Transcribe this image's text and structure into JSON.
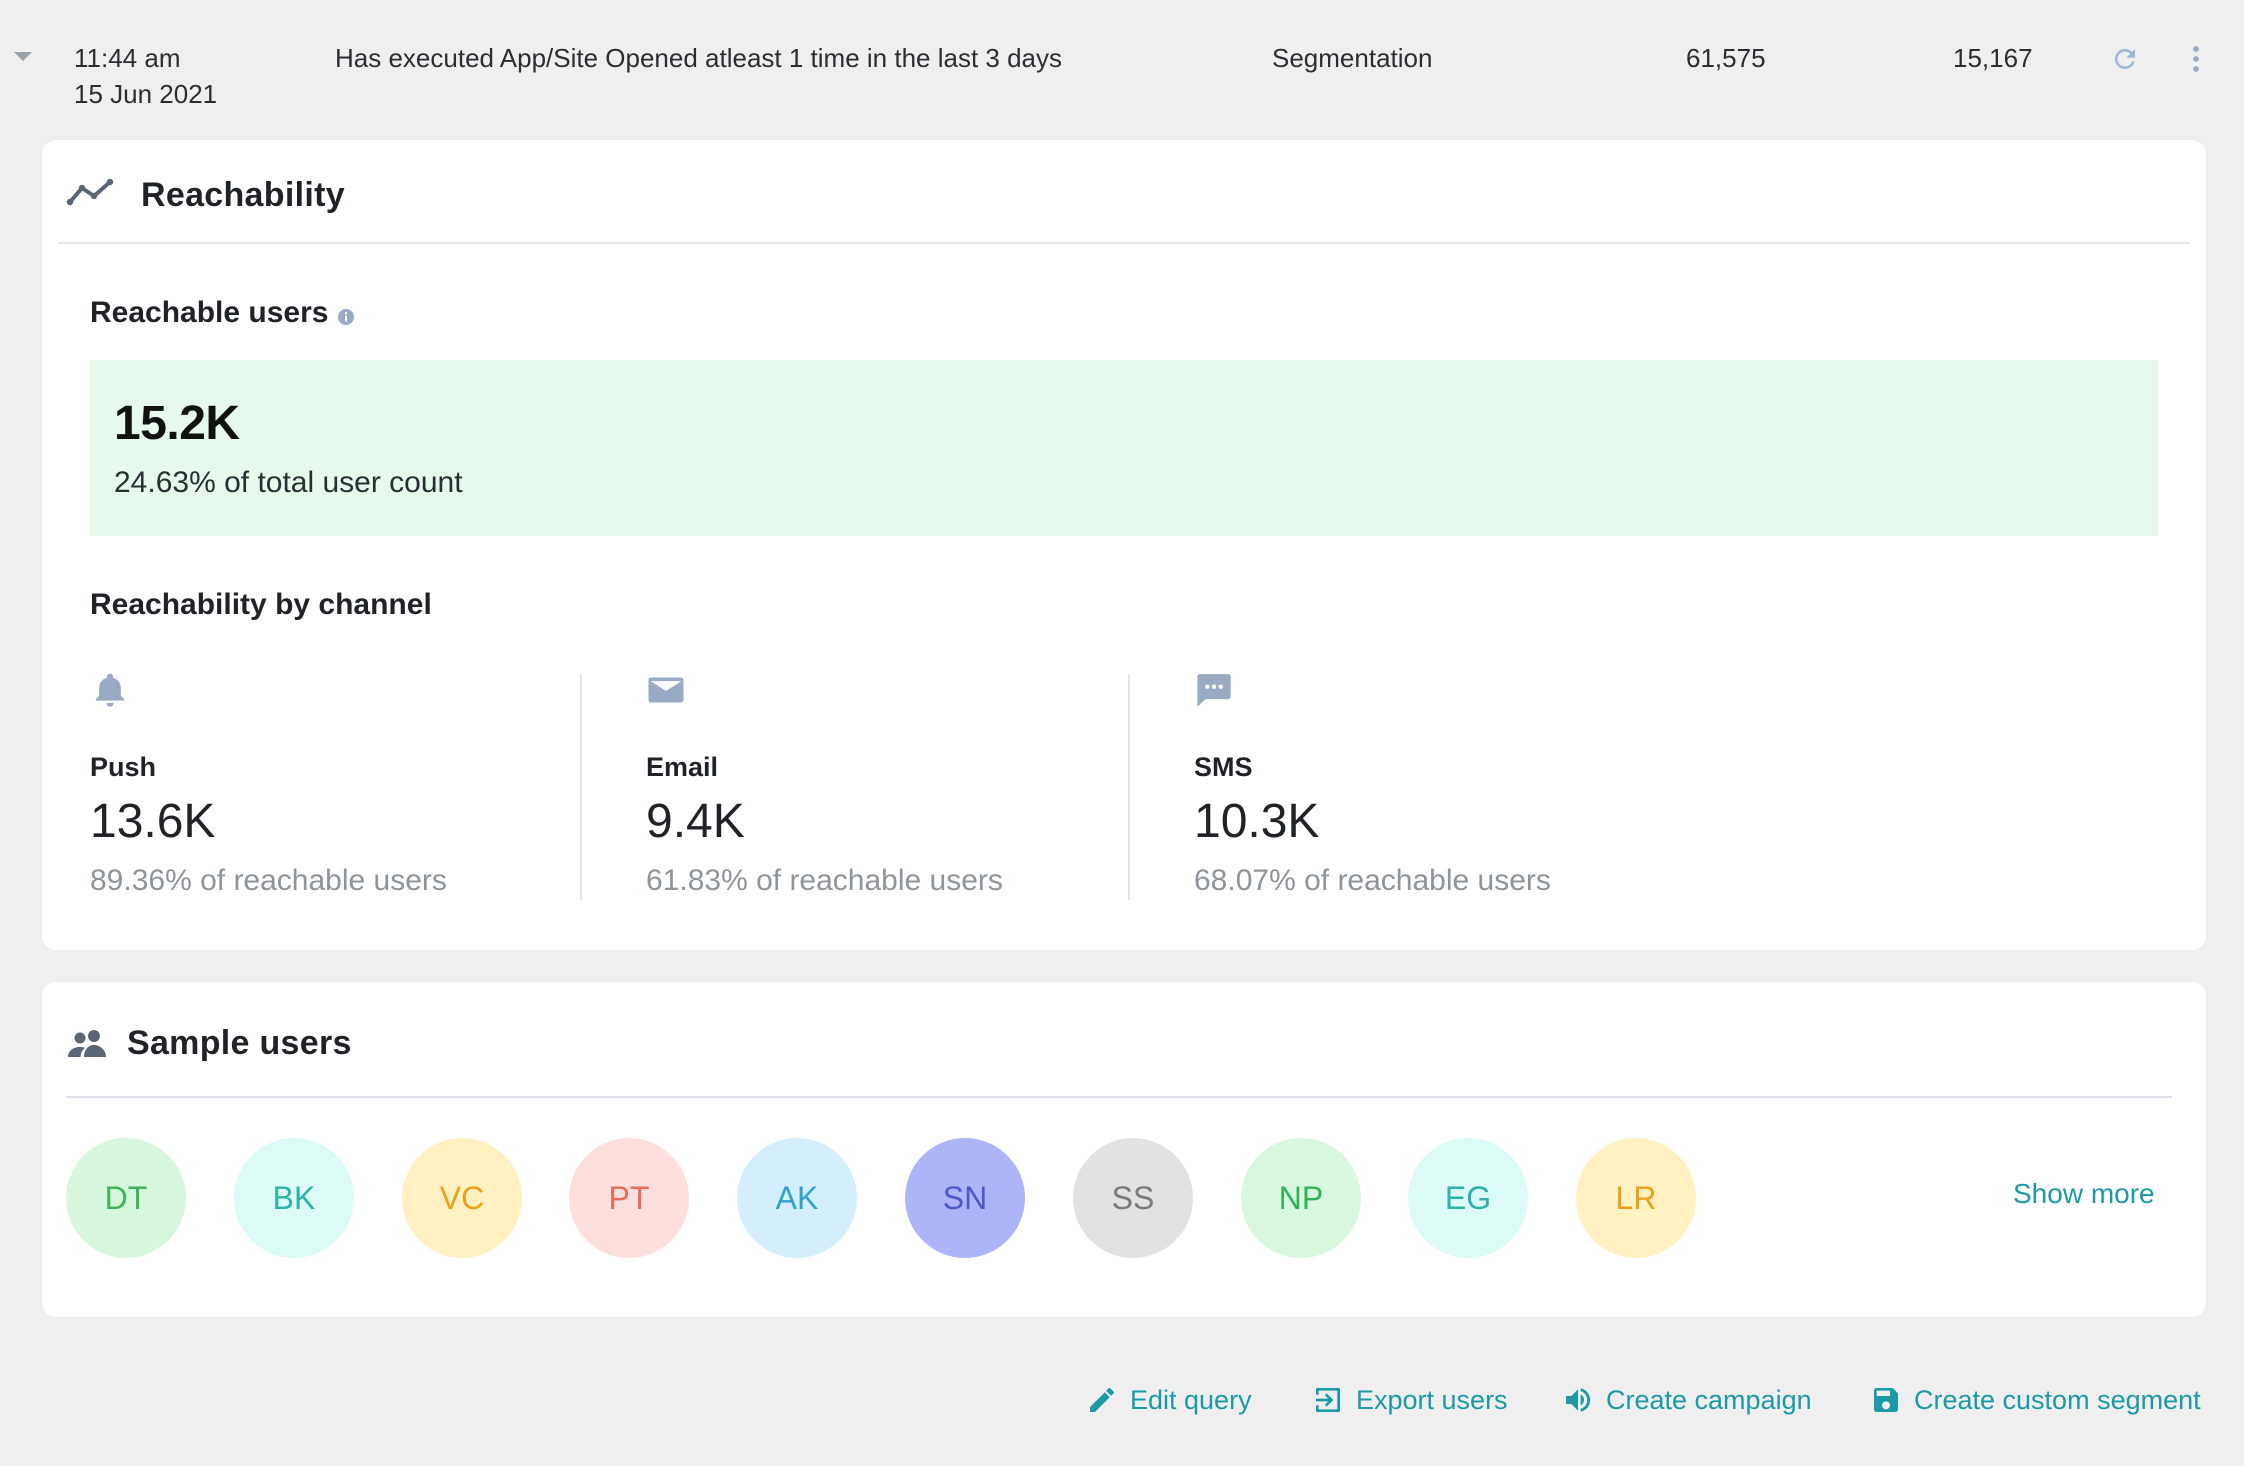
{
  "row": {
    "time": "11:44 am",
    "date": "15 Jun 2021",
    "query": "Has executed App/Site Opened atleast 1 time in the last 3 days",
    "source": "Segmentation",
    "total_users": "61,575",
    "reachable_users": "15,167"
  },
  "reachability": {
    "title": "Reachability",
    "reachable_label": "Reachable users",
    "summary_value": "15.2K",
    "summary_sub": "24.63% of total user count",
    "by_channel_label": "Reachability by channel",
    "channels": [
      {
        "name": "Push",
        "value": "13.6K",
        "pct": "89.36% of reachable users",
        "icon": "bell-icon"
      },
      {
        "name": "Email",
        "value": "9.4K",
        "pct": "61.83% of reachable users",
        "icon": "mail-icon"
      },
      {
        "name": "SMS",
        "value": "10.3K",
        "pct": "68.07% of reachable users",
        "icon": "chat-icon"
      }
    ]
  },
  "sample": {
    "title": "Sample users",
    "show_more": "Show more",
    "users": [
      {
        "initials": "DT",
        "bg": "#d8f5dd",
        "fg": "#3bb55a"
      },
      {
        "initials": "BK",
        "bg": "#dcfaf6",
        "fg": "#2ab3a6"
      },
      {
        "initials": "VC",
        "bg": "#fff1c2",
        "fg": "#e9a219"
      },
      {
        "initials": "PT",
        "bg": "#fde0dd",
        "fg": "#ec6a57"
      },
      {
        "initials": "AK",
        "bg": "#d4effb",
        "fg": "#2fa0d0"
      },
      {
        "initials": "SN",
        "bg": "#aeb4f8",
        "fg": "#4f58c8"
      },
      {
        "initials": "SS",
        "bg": "#e2e2e2",
        "fg": "#7a7a7a"
      },
      {
        "initials": "NP",
        "bg": "#d9f7df",
        "fg": "#2fb25a"
      },
      {
        "initials": "EG",
        "bg": "#dcfaf6",
        "fg": "#2ab3a6"
      },
      {
        "initials": "LR",
        "bg": "#fff1c2",
        "fg": "#e9a219"
      }
    ]
  },
  "actions": {
    "edit": "Edit query",
    "export": "Export users",
    "campaign": "Create campaign",
    "segment": "Create custom segment"
  },
  "colors": {
    "accent": "#1b9aa6",
    "summary_bg": "#e6f9ec",
    "icon_gray": "#9aa9c4"
  }
}
